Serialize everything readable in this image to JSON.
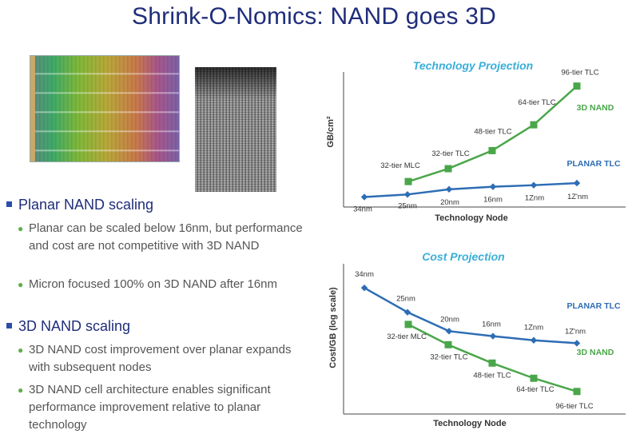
{
  "slide": {
    "title": "Shrink-O-Nomics: NAND goes 3D"
  },
  "colors": {
    "accent_navy": "#1f2d7a",
    "planar": "#2e6db4",
    "nand3d": "#4aa64a",
    "chart_title": "#3aaed8"
  },
  "bullets": [
    {
      "heading": "Planar NAND scaling",
      "items": [
        "Planar can be scaled below 16nm, but performance and cost are not competitive with 3D NAND",
        "Micron focused 100% on 3D NAND after 16nm"
      ]
    },
    {
      "heading": "3D NAND scaling",
      "items": [
        "3D NAND cost improvement over planar expands with subsequent nodes",
        "3D NAND  cell architecture enables significant performance improvement relative to planar technology"
      ]
    }
  ],
  "chart_data": [
    {
      "type": "line",
      "title": "Technology Projection",
      "xlabel": "Technology Node",
      "ylabel": "GB/cm²",
      "grid": false,
      "series": [
        {
          "name": "PLANAR TLC",
          "color": "#2e6db4",
          "marker": "diamond",
          "labels": [
            "34nm",
            "25nm",
            "20nm",
            "16nm",
            "1Znm",
            "1Z'nm"
          ],
          "values": [
            1.0,
            1.5,
            2.5,
            3.0,
            3.3,
            3.7
          ]
        },
        {
          "name": "3D NAND",
          "color": "#4aa64a",
          "marker": "square",
          "labels": [
            "32-tier MLC",
            "32-tier TLC",
            "48-tier TLC",
            "64-tier TLC",
            "96-tier TLC"
          ],
          "values": [
            4.0,
            6.5,
            10.0,
            15.0,
            22.5
          ]
        }
      ]
    },
    {
      "type": "line",
      "title": "Cost Projection",
      "xlabel": "Technology Node",
      "ylabel": "Cost/GB (log scale)",
      "grid": false,
      "series": [
        {
          "name": "PLANAR TLC",
          "color": "#2e6db4",
          "marker": "diamond",
          "labels": [
            "34nm",
            "25nm",
            "20nm",
            "16nm",
            "1Znm",
            "1Z'nm"
          ],
          "values": [
            10.0,
            6.3,
            4.4,
            4.0,
            3.7,
            3.5
          ]
        },
        {
          "name": "3D NAND",
          "color": "#4aa64a",
          "marker": "square",
          "labels": [
            "32-tier MLC",
            "32-tier TLC",
            "48-tier TLC",
            "64-tier TLC",
            "96-tier TLC"
          ],
          "values": [
            5.0,
            3.4,
            2.4,
            1.8,
            1.4
          ]
        }
      ]
    }
  ]
}
